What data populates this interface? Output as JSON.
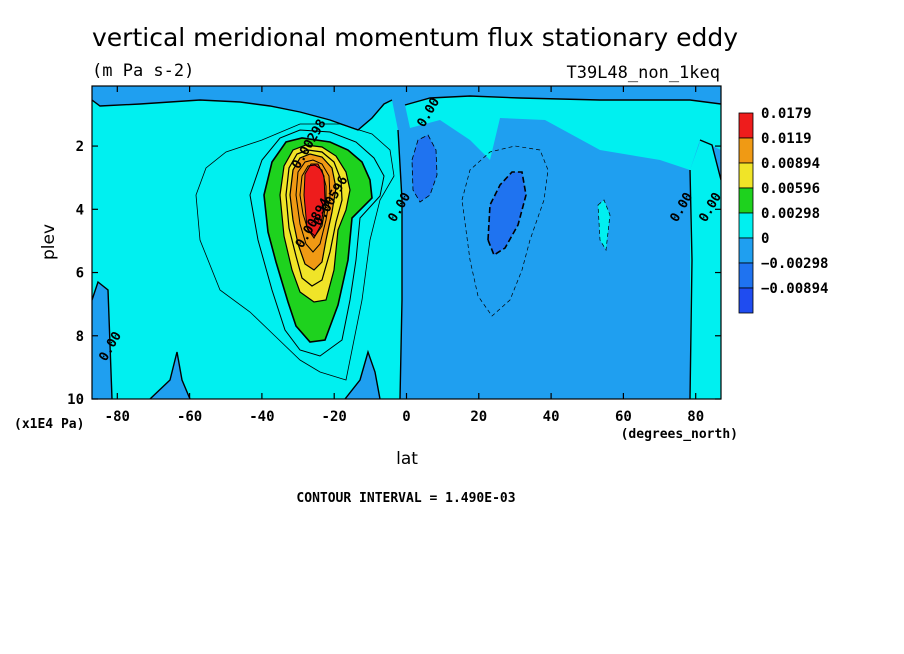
{
  "chart_data": {
    "type": "contour",
    "title": "vertical meridional momentum flux stationary eddy",
    "units": "(m Pa s-2)",
    "run_label": "T39L48_non_1keq",
    "xlabel": "lat",
    "x_units": "(degrees_north)",
    "ylabel": "plev",
    "y_units": "(x1E4 Pa)",
    "xlim": [
      -87,
      87
    ],
    "ylim": [
      10,
      0.1
    ],
    "x_ticks": [
      "-80",
      "-60",
      "-40",
      "-20",
      "0",
      "20",
      "40",
      "60",
      "80"
    ],
    "y_ticks": [
      "2",
      "4",
      "6",
      "8",
      "10"
    ],
    "contour_interval_text": "CONTOUR INTERVAL = 1.490E-03",
    "legend": {
      "levels": [
        "0.0179",
        "0.0119",
        "0.00894",
        "0.00596",
        "0.00298",
        "0",
        "−0.00298",
        "−0.00894"
      ],
      "colors": [
        "#ee1c1c",
        "#f09a14",
        "#f0e428",
        "#1ed21e",
        "#00f0f0",
        "#1f9ff0",
        "#1f73f0",
        "#1f4cf0"
      ]
    },
    "background_level_color": "#1f9ff0",
    "contour_labels": [
      {
        "text": "0.00298",
        "x": -26,
        "y": 2.0
      },
      {
        "text": "0.00596",
        "x": -20,
        "y": 3.8
      },
      {
        "text": "0.00894",
        "x": -25,
        "y": 4.5
      },
      {
        "text": "0.00",
        "x": -1,
        "y": 4.0
      },
      {
        "text": "0.00",
        "x": 7,
        "y": 1.0
      },
      {
        "text": "0.00",
        "x": 77,
        "y": 4.0
      },
      {
        "text": "0.00",
        "x": 85,
        "y": 4.0
      },
      {
        "text": "0.00",
        "x": -81,
        "y": 8.4
      }
    ],
    "features": [
      {
        "name": "positive flux maximum",
        "x": -27,
        "y": 3.9,
        "value": 0.0179
      },
      {
        "name": "negative flux minimum north",
        "x": 28,
        "y": 3.8,
        "value": -0.00894
      },
      {
        "name": "negative flux minimum near equator",
        "x": 5,
        "y": 2.8,
        "value": -0.00894
      }
    ]
  }
}
